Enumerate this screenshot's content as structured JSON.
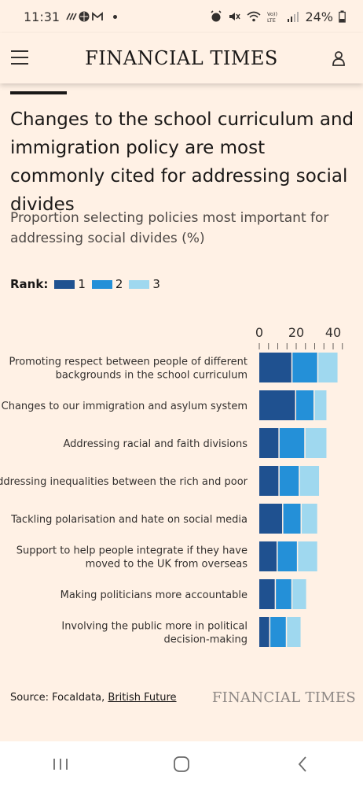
{
  "status": {
    "time": "11:31",
    "battery": "24%"
  },
  "header": {
    "logo": "FINANCIAL TIMES"
  },
  "article": {
    "headline": "Changes to the school curriculum and immigration policy are most commonly cited for addressing social divides",
    "subtitle": "Proportion selecting policies most important for addressing social divides (%)"
  },
  "legend": {
    "label": "Rank:",
    "items": [
      {
        "label": "1",
        "color": "#1f5190"
      },
      {
        "label": "2",
        "color": "#2490d8"
      },
      {
        "label": "3",
        "color": "#9fd8ef"
      }
    ]
  },
  "chart_data": {
    "type": "bar",
    "orientation": "horizontal",
    "stacked": true,
    "xlim": [
      0,
      45
    ],
    "xticks": [
      0,
      20,
      40
    ],
    "categories": [
      [
        "Promoting respect between people of different",
        "backgrounds in the school curriculum"
      ],
      [
        "Changes to our immigration and asylum system"
      ],
      [
        "Addressing racial and faith divisions"
      ],
      [
        "Addressing inequalities between the rich and poor"
      ],
      [
        "Tackling polarisation and hate on social media"
      ],
      [
        "Support to help people integrate if they have",
        "moved to the UK from overseas"
      ],
      [
        "Making politicians more accountable"
      ],
      [
        "Involving the public more in political",
        "decision-making"
      ]
    ],
    "series": [
      {
        "name": "1",
        "color": "#1f5190",
        "values": [
          18,
          20,
          11,
          11,
          13,
          10,
          9,
          6
        ]
      },
      {
        "name": "2",
        "color": "#2490d8",
        "values": [
          14,
          10,
          14,
          11,
          10,
          11,
          9,
          9
        ]
      },
      {
        "name": "3",
        "color": "#9fd8ef",
        "values": [
          11,
          7,
          12,
          11,
          9,
          11,
          8,
          8
        ]
      }
    ]
  },
  "footer": {
    "source_prefix": "Source: Focaldata, ",
    "source_link": "British Future",
    "logo": "FINANCIAL TIMES"
  }
}
